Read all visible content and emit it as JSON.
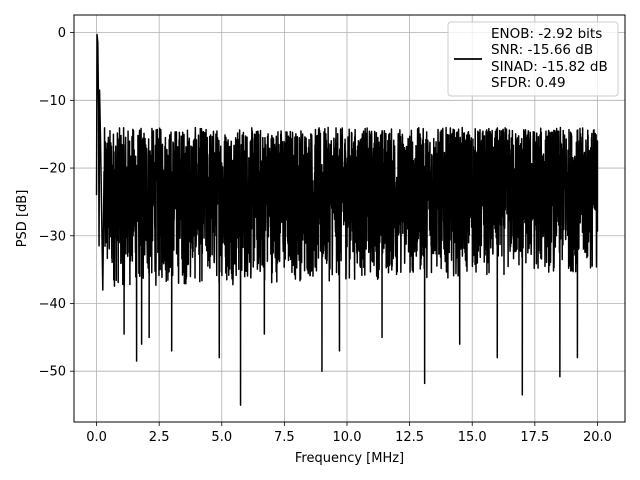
{
  "chart_data": {
    "type": "line",
    "title": "",
    "xlabel": "Frequency [MHz]",
    "ylabel": "PSD [dB]",
    "xlim": [
      -0.9,
      21.1
    ],
    "ylim": [
      -57.5,
      2.6
    ],
    "x_ticks": [
      0.0,
      2.5,
      5.0,
      7.5,
      10.0,
      12.5,
      15.0,
      17.5,
      20.0
    ],
    "x_tick_labels": [
      "0.0",
      "2.5",
      "5.0",
      "7.5",
      "10.0",
      "12.5",
      "15.0",
      "17.5",
      "20.0"
    ],
    "y_ticks": [
      0,
      -10,
      -20,
      -30,
      -40,
      -50
    ],
    "y_tick_labels": [
      "0",
      "−10",
      "−20",
      "−30",
      "−40",
      "−50"
    ],
    "grid": true,
    "legend_position": "top-right",
    "series": [
      {
        "color": "#000000",
        "x_range": [
          0.0,
          20.0
        ],
        "noise_floor_db": [
          -38,
          -14
        ],
        "notable_points": [
          {
            "x": 0.0,
            "y": -24
          },
          {
            "x": 0.02,
            "y": -0.3
          },
          {
            "x": 0.05,
            "y": -1.5
          },
          {
            "x": 0.08,
            "y": -11
          },
          {
            "x": 0.1,
            "y": -31.5
          },
          {
            "x": 0.12,
            "y": -8.5
          },
          {
            "x": 0.16,
            "y": -16
          },
          {
            "x": 0.25,
            "y": -38
          },
          {
            "x": 1.1,
            "y": -44.5
          },
          {
            "x": 1.6,
            "y": -48.5
          },
          {
            "x": 1.8,
            "y": -46
          },
          {
            "x": 2.1,
            "y": -45
          },
          {
            "x": 3.0,
            "y": -47
          },
          {
            "x": 4.9,
            "y": -48
          },
          {
            "x": 5.75,
            "y": -55
          },
          {
            "x": 6.7,
            "y": -44.5
          },
          {
            "x": 9.0,
            "y": -50
          },
          {
            "x": 9.7,
            "y": -47
          },
          {
            "x": 11.4,
            "y": -45
          },
          {
            "x": 13.1,
            "y": -51.8
          },
          {
            "x": 14.5,
            "y": -46
          },
          {
            "x": 16.0,
            "y": -48
          },
          {
            "x": 17.0,
            "y": -53.5
          },
          {
            "x": 18.5,
            "y": -50.8
          },
          {
            "x": 19.2,
            "y": -48
          },
          {
            "x": 20.0,
            "y": -16
          }
        ]
      }
    ],
    "legend_lines": [
      "ENOB: -2.92 bits",
      "SNR: -15.66 dB",
      "SINAD: -15.82 dB",
      "SFDR: 0.49"
    ]
  }
}
